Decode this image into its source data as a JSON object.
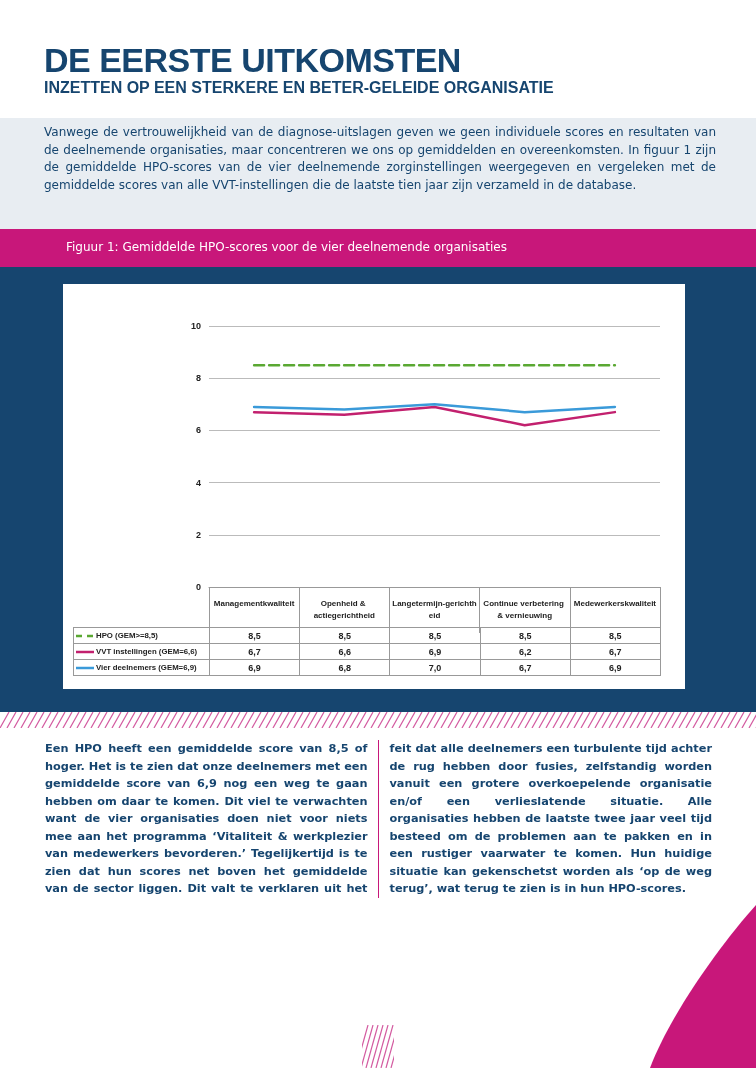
{
  "chart_data": {
    "type": "line",
    "title": "DE EERSTE UITKOMSTEN",
    "subtitle": "INZETTEN OP EEN STERKERE EN BETER-GELEIDE ORGANISATIE",
    "annotations": [
      "Vanwege de vertrouwelijkheid van de diagnose-uitslagen geven we geen individuele scores en resultaten van de deelnemende organisaties, maar concentreren we ons op gemiddelden en overeenkomsten. In figuur 1 zijn de gemiddelde HPO-scores van de vier deelnemende zorginstellingen weergegeven en vergeleken met de gemiddelde scores van alle VVT-instellingen die de laatste tien jaar zijn verzameld in de database.",
      "Figuur 1: Gemiddelde HPO-scores voor de vier deelnemende organisaties",
      "Een HPO heeft een gemiddelde score van 8,5 of hoger. Het is te zien dat onze deelnemers met een gemiddelde score van 6,9 nog een weg te gaan hebben om daar te komen. Dit viel te verwachten want de vier organisaties doen niet voor niets mee aan het programma ‘Vitaliteit & werkplezier van medewerkers bevorderen.’ Tegelijkertijd is te zien dat hun scores net boven het gemiddelde van de sector liggen. Dit valt te verklaren uit het feit dat alle deelnemers een turbulente tijd achter de rug hebben door fusies, zelfstandig worden vanuit een grotere overkoepelende organisatie en/of een verlieslatende situatie. Alle organisaties hebben de laatste twee jaar veel tijd besteed om de problemen aan te pakken en in een rustiger vaarwater te komen. Hun huidige situatie kan gekenschetst worden als ‘op de weg terug’, wat terug te zien is in hun HPO-scores."
    ],
    "categories": [
      "Managementkwaliteit",
      "Openheid & actiegerichtheid",
      "Langetermijn-gerichtheid",
      "Continue verbetering & vernieuwing",
      "Medewerkerskwaliteit"
    ],
    "series": [
      {
        "name": "HPO (GEM>=8,5)",
        "color": "#5aa832",
        "line_style": "dashed",
        "values": [
          8.5,
          8.5,
          8.5,
          8.5,
          8.5
        ],
        "value_labels": [
          "8,5",
          "8,5",
          "8,5",
          "8,5",
          "8,5"
        ]
      },
      {
        "name": "VVT instellingen (GEM=6,6)",
        "color": "#c2206e",
        "line_style": "solid",
        "values": [
          6.7,
          6.6,
          6.9,
          6.2,
          6.7
        ],
        "value_labels": [
          "6,7",
          "6,6",
          "6,9",
          "6,2",
          "6,7"
        ]
      },
      {
        "name": "Vier deelnemers (GEM=6,9)",
        "color": "#3a9ad9",
        "line_style": "solid",
        "values": [
          6.9,
          6.8,
          7.0,
          6.7,
          6.9
        ],
        "value_labels": [
          "6,9",
          "6,8",
          "7,0",
          "6,7",
          "6,9"
        ]
      }
    ],
    "ylim": [
      0,
      10
    ],
    "yticks": [
      0,
      2,
      4,
      6,
      8,
      10
    ],
    "grid": "y",
    "legend": "bottom left",
    "marker": "none"
  }
}
